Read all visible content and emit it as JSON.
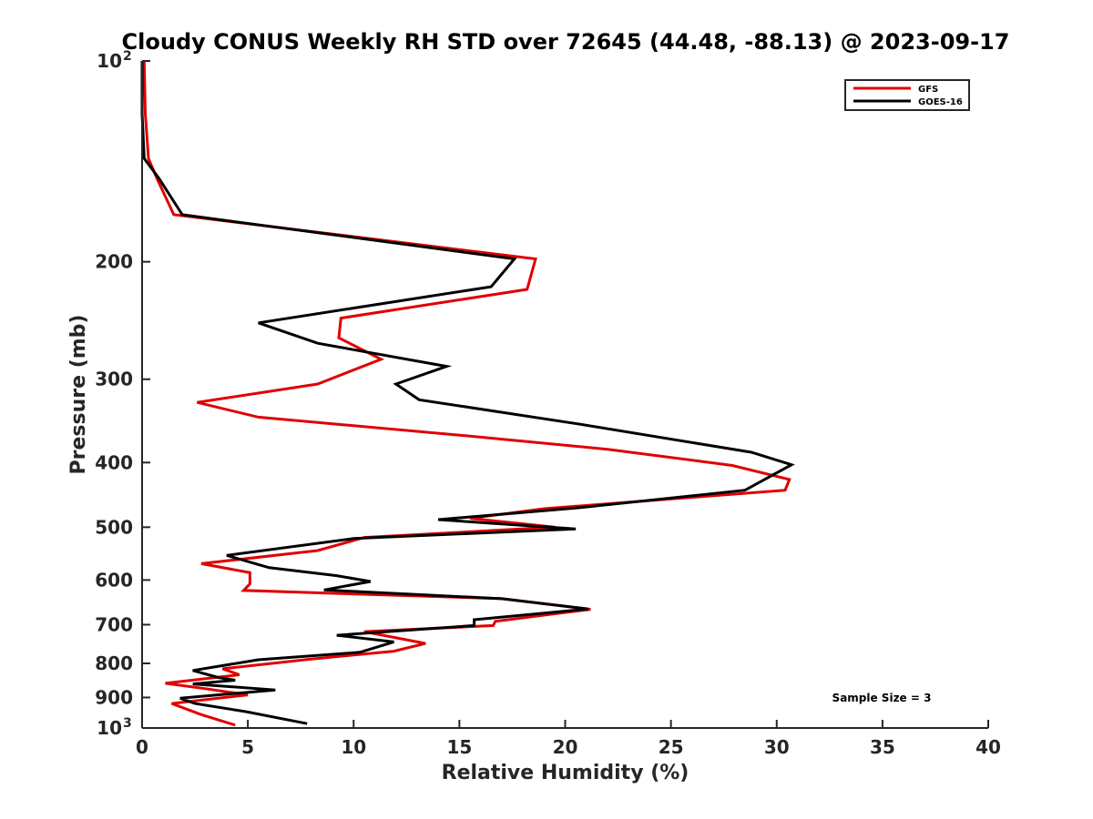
{
  "chart_data": {
    "type": "line",
    "title": "Cloudy CONUS Weekly RH STD over 72645 (44.48, -88.13) @ 2023-09-17",
    "xlabel": "Relative Humidity (%)",
    "ylabel": "Pressure (mb)",
    "xlim": [
      0,
      40
    ],
    "ylim": [
      100,
      1000
    ],
    "y_scale": "log",
    "y_reversed": true,
    "grid": false,
    "legend_position": "top-right",
    "x_ticks": [
      "0",
      "5",
      "10",
      "15",
      "20",
      "25",
      "30",
      "35",
      "40"
    ],
    "y_ticks": [
      {
        "value": 100,
        "label": "10",
        "sup": "2"
      },
      {
        "value": 200,
        "label": "200",
        "sup": ""
      },
      {
        "value": 300,
        "label": "300",
        "sup": ""
      },
      {
        "value": 400,
        "label": "400",
        "sup": ""
      },
      {
        "value": 500,
        "label": "500",
        "sup": ""
      },
      {
        "value": 600,
        "label": "600",
        "sup": ""
      },
      {
        "value": 700,
        "label": "700",
        "sup": ""
      },
      {
        "value": 800,
        "label": "800",
        "sup": ""
      },
      {
        "value": 900,
        "label": "900",
        "sup": ""
      },
      {
        "value": 1000,
        "label": "10",
        "sup": "3"
      }
    ],
    "annotation": "Sample Size = 3",
    "series": [
      {
        "name": "GFS",
        "color": "#e00000",
        "points": [
          [
            0.1,
            100
          ],
          [
            0.15,
            120
          ],
          [
            0.3,
            140
          ],
          [
            0.7,
            150
          ],
          [
            1.5,
            170
          ],
          [
            18.6,
            198
          ],
          [
            18.2,
            220
          ],
          [
            9.4,
            243
          ],
          [
            9.3,
            260
          ],
          [
            11.3,
            280
          ],
          [
            8.3,
            305
          ],
          [
            2.6,
            325
          ],
          [
            5.5,
            342
          ],
          [
            15.5,
            365
          ],
          [
            22.0,
            382
          ],
          [
            27.9,
            404
          ],
          [
            30.6,
            424
          ],
          [
            30.4,
            440
          ],
          [
            19.0,
            469
          ],
          [
            15.5,
            485
          ],
          [
            19.5,
            500
          ],
          [
            10.5,
            518
          ],
          [
            8.3,
            542
          ],
          [
            2.8,
            567
          ],
          [
            5.1,
            585
          ],
          [
            5.1,
            608
          ],
          [
            4.8,
            622
          ],
          [
            17.0,
            640
          ],
          [
            21.2,
            664
          ],
          [
            16.7,
            692
          ],
          [
            16.6,
            702
          ],
          [
            10.5,
            717
          ],
          [
            13.4,
            747
          ],
          [
            11.9,
            767
          ],
          [
            8.0,
            788
          ],
          [
            3.8,
            815
          ],
          [
            4.6,
            832
          ],
          [
            1.1,
            857
          ],
          [
            3.0,
            873
          ],
          [
            5.0,
            892
          ],
          [
            1.4,
            919
          ],
          [
            2.8,
            955
          ],
          [
            4.4,
            990
          ]
        ]
      },
      {
        "name": "GOES-16",
        "color": "#000000",
        "points": [
          [
            0.0,
            100
          ],
          [
            0.0,
            120
          ],
          [
            0.1,
            140
          ],
          [
            0.8,
            150
          ],
          [
            1.9,
            170
          ],
          [
            17.6,
            198
          ],
          [
            16.5,
            218
          ],
          [
            5.5,
            247
          ],
          [
            8.3,
            265
          ],
          [
            14.4,
            287
          ],
          [
            12.0,
            305
          ],
          [
            13.1,
            322
          ],
          [
            20.6,
            350
          ],
          [
            28.8,
            386
          ],
          [
            30.7,
            403
          ],
          [
            28.5,
            440
          ],
          [
            20.5,
            468
          ],
          [
            14.0,
            487
          ],
          [
            20.5,
            503
          ],
          [
            10.0,
            520
          ],
          [
            4.0,
            551
          ],
          [
            6.0,
            575
          ],
          [
            9.2,
            591
          ],
          [
            10.8,
            603
          ],
          [
            8.6,
            621
          ],
          [
            17.0,
            640
          ],
          [
            21.1,
            663
          ],
          [
            15.7,
            688
          ],
          [
            15.7,
            702
          ],
          [
            9.2,
            726
          ],
          [
            11.9,
            743
          ],
          [
            10.3,
            770
          ],
          [
            5.5,
            790
          ],
          [
            2.4,
            820
          ],
          [
            3.6,
            840
          ],
          [
            4.4,
            848
          ],
          [
            2.4,
            859
          ],
          [
            6.3,
            877
          ],
          [
            1.8,
            902
          ],
          [
            2.5,
            919
          ],
          [
            4.9,
            945
          ],
          [
            7.8,
            985
          ]
        ]
      }
    ]
  }
}
